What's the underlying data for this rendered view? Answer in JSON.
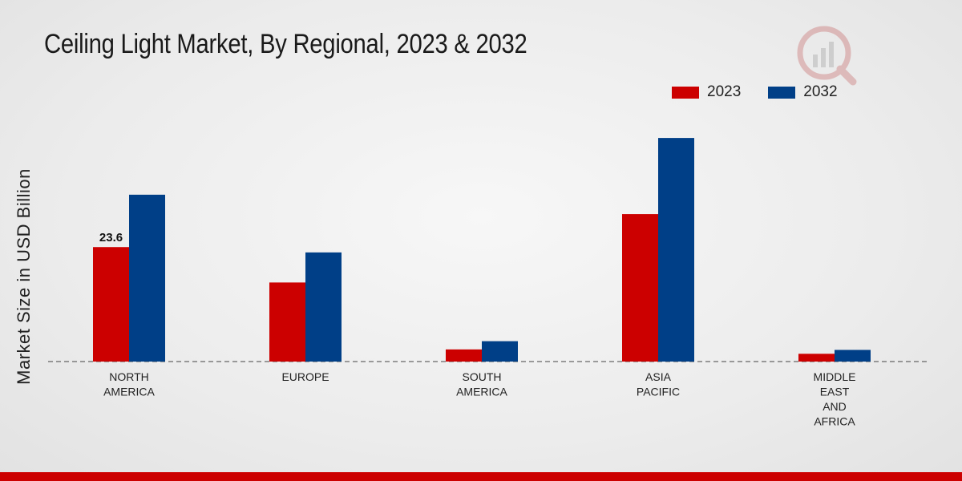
{
  "title": "Ceiling Light Market, By Regional, 2023 & 2032",
  "colors": {
    "series_2023": "#cc0000",
    "series_2032": "#003f87",
    "footer": "#cc0000"
  },
  "legend": [
    {
      "label": "2023",
      "color": "#cc0000"
    },
    {
      "label": "2032",
      "color": "#003f87"
    }
  ],
  "chart_data": {
    "type": "bar",
    "title": "Ceiling Light Market, By Regional, 2023 & 2032",
    "xlabel": "",
    "ylabel": "Market Size in USD Billion",
    "ylim": [
      0,
      60
    ],
    "grid": false,
    "legend_position": "top-right",
    "categories": [
      [
        "NORTH",
        "AMERICA"
      ],
      [
        "EUROPE"
      ],
      [
        "SOUTH",
        "AMERICA"
      ],
      [
        "ASIA",
        "PACIFIC"
      ],
      [
        "MIDDLE",
        "EAST",
        "AND",
        "AFRICA"
      ]
    ],
    "series": [
      {
        "name": "2023",
        "color": "#cc0000",
        "values": [
          23.6,
          16.3,
          2.5,
          30.4,
          1.6
        ]
      },
      {
        "name": "2032",
        "color": "#003f87",
        "values": [
          34.4,
          22.5,
          4.2,
          46.1,
          2.4
        ]
      }
    ],
    "data_labels": [
      {
        "series": 0,
        "index": 0,
        "text": "23.6"
      }
    ]
  }
}
